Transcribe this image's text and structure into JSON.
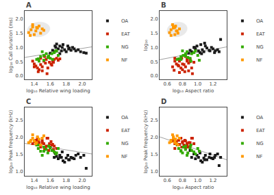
{
  "chart_data": [
    {
      "type": "scatter",
      "title": "A",
      "xlabel": "log₁₀ Relative wing loading",
      "ylabel": "log₁₀ Call duration (ms)",
      "xlim": [
        1.28,
        2.12
      ],
      "ylim": [
        -0.12,
        2.28
      ],
      "xticks": [
        1.4,
        1.6,
        1.8,
        {
          "value": 2.0,
          "label": "2.0"
        }
      ],
      "yticks": [
        {
          "value": 0.0,
          "label": "0.0"
        },
        0.5,
        {
          "value": 1.0,
          "label": "1.0"
        },
        1.5,
        {
          "value": 2.0,
          "label": "2.0"
        }
      ],
      "grid": false,
      "legend": "upper right",
      "ellipse": {
        "center": [
          1.455,
          1.63
        ],
        "width": 0.28,
        "height": 0.52,
        "angle": -5,
        "color": "#d8d8d8"
      },
      "series": [
        {
          "type": "line",
          "color": "#a0a0a0",
          "x": [
            1.28,
            2.12
          ],
          "values": [
            0.65,
            1.02
          ]
        },
        {
          "name": "OA",
          "color": "#1a1a1a",
          "marker": "square",
          "x": [
            1.6,
            1.63,
            1.65,
            1.67,
            1.7,
            1.72,
            1.74,
            1.76,
            1.78,
            1.8,
            1.82,
            1.84,
            1.86,
            1.88,
            1.9,
            1.92,
            1.95,
            1.98,
            2.02,
            2.05,
            1.68,
            1.75,
            1.83,
            1.72,
            1.66
          ],
          "values": [
            0.8,
            0.9,
            0.85,
            1.0,
            0.95,
            1.05,
            0.88,
            1.1,
            0.92,
            0.85,
            1.05,
            0.98,
            0.9,
            1.0,
            0.95,
            0.88,
            0.92,
            0.85,
            0.82,
            0.8,
            1.12,
            1.0,
            0.95,
            0.78,
            1.05
          ]
        },
        {
          "name": "EAT",
          "color": "#cc2200",
          "marker": "square",
          "x": [
            1.38,
            1.4,
            1.42,
            1.44,
            1.46,
            1.48,
            1.5,
            1.52,
            1.54,
            1.55,
            1.57,
            1.59,
            1.61,
            1.63,
            1.65,
            1.68,
            1.7,
            1.45,
            1.5,
            1.56,
            1.62,
            1.48,
            1.53,
            1.58,
            1.64,
            1.4,
            1.72
          ],
          "values": [
            0.52,
            0.42,
            0.35,
            0.28,
            0.22,
            0.4,
            0.32,
            0.52,
            0.45,
            0.58,
            0.28,
            0.48,
            0.42,
            0.52,
            0.58,
            0.62,
            0.55,
            0.15,
            0.18,
            0.08,
            0.38,
            0.62,
            0.68,
            0.65,
            0.48,
            0.32,
            0.6
          ]
        },
        {
          "name": "NG",
          "color": "#33aa00",
          "marker": "square",
          "x": [
            1.45,
            1.48,
            1.52,
            1.55,
            1.57,
            1.6,
            1.62,
            1.65,
            1.67,
            1.7,
            1.52,
            1.58,
            1.63,
            1.5,
            1.46,
            1.68,
            1.43
          ],
          "values": [
            0.6,
            0.68,
            0.72,
            0.78,
            0.65,
            0.62,
            0.78,
            0.82,
            0.88,
            0.72,
            0.55,
            0.7,
            0.58,
            0.85,
            0.52,
            0.88,
            0.58
          ]
        },
        {
          "name": "NF",
          "color": "#ff9900",
          "marker": "square",
          "x": [
            1.33,
            1.36,
            1.38,
            1.4,
            1.42,
            1.44,
            1.46,
            1.48,
            1.5,
            1.35,
            1.43,
            1.52,
            1.38
          ],
          "values": [
            1.52,
            1.62,
            1.72,
            1.45,
            1.58,
            1.68,
            1.75,
            1.5,
            1.65,
            1.42,
            1.7,
            1.6,
            1.8
          ]
        }
      ]
    },
    {
      "type": "scatter",
      "title": "B",
      "xlabel": "log₁₀ Aspect ratio",
      "ylabel": "log₁₀",
      "xlim": [
        0.5,
        1.38
      ],
      "ylim": [
        -0.12,
        2.28
      ],
      "xticks": [
        0.6,
        0.8,
        {
          "value": 1.0,
          "label": "1.0"
        },
        1.2
      ],
      "yticks": [
        {
          "value": 0.0,
          "label": "0.0"
        },
        0.5,
        {
          "value": 1.0,
          "label": "1.0"
        },
        1.5,
        {
          "value": 2.0,
          "label": "2.0"
        }
      ],
      "grid": false,
      "legend": "upper right",
      "ellipse": {
        "center": [
          0.73,
          1.63
        ],
        "width": 0.26,
        "height": 0.52,
        "angle": -5,
        "color": "#d8d8d8"
      },
      "series": [
        {
          "type": "line",
          "color": "#a0a0a0",
          "x": [
            0.5,
            1.38
          ],
          "values": [
            0.57,
            1.02
          ]
        },
        {
          "name": "OA",
          "color": "#1a1a1a",
          "marker": "square",
          "x": [
            0.88,
            0.9,
            0.92,
            0.95,
            0.97,
            0.99,
            1.01,
            1.04,
            1.06,
            1.08,
            1.1,
            1.12,
            1.15,
            1.18,
            1.2,
            1.23,
            1.26,
            1.28,
            1.3,
            1.03,
            1.09,
            1.16,
            1.22,
            0.96,
            1.05
          ],
          "values": [
            0.8,
            0.9,
            0.85,
            1.0,
            0.95,
            1.05,
            0.88,
            1.1,
            0.92,
            0.85,
            1.05,
            0.98,
            0.9,
            1.0,
            0.95,
            0.88,
            0.92,
            0.85,
            1.28,
            0.82,
            1.15,
            0.88,
            0.82,
            1.0,
            0.78
          ]
        },
        {
          "name": "EAT",
          "color": "#cc2200",
          "marker": "square",
          "x": [
            0.7,
            0.72,
            0.75,
            0.78,
            0.8,
            0.82,
            0.84,
            0.86,
            0.88,
            0.9,
            0.92,
            0.95,
            0.8,
            0.76,
            0.86,
            0.7,
            0.83,
            0.88,
            0.93,
            0.74,
            0.79,
            0.84,
            0.9,
            0.67,
            0.69,
            0.76,
            0.86
          ],
          "values": [
            0.52,
            0.42,
            0.35,
            0.28,
            0.22,
            0.4,
            0.32,
            0.52,
            0.45,
            0.58,
            0.28,
            0.48,
            0.42,
            0.52,
            0.58,
            0.62,
            0.15,
            0.18,
            0.08,
            0.38,
            0.62,
            0.68,
            0.5,
            0.32,
            0.2,
            0.12,
            0.58
          ]
        },
        {
          "name": "NG",
          "color": "#33aa00",
          "marker": "square",
          "x": [
            0.75,
            0.78,
            0.81,
            0.84,
            0.87,
            0.9,
            0.92,
            0.95,
            0.97,
            1.0,
            1.02,
            0.84,
            0.78,
            0.86,
            0.91,
            0.8,
            0.73
          ],
          "values": [
            0.6,
            0.68,
            0.72,
            0.78,
            0.65,
            0.62,
            0.78,
            0.82,
            0.88,
            0.72,
            0.55,
            0.7,
            0.58,
            0.85,
            0.52,
            0.88,
            0.58
          ]
        },
        {
          "name": "NF",
          "color": "#ff9900",
          "marker": "square",
          "x": [
            0.63,
            0.65,
            0.68,
            0.7,
            0.72,
            0.68,
            0.71,
            0.74,
            0.65,
            0.76,
            0.7,
            0.73,
            0.67
          ],
          "values": [
            1.52,
            1.62,
            1.72,
            1.45,
            1.58,
            1.68,
            1.75,
            1.5,
            1.42,
            1.65,
            1.7,
            1.58,
            1.8
          ]
        }
      ]
    },
    {
      "type": "scatter",
      "title": "C",
      "xlabel": "log₁₀ Relative wing loading",
      "ylabel": "log₁₀ Peak frequency (kHz)",
      "xlim": [
        1.28,
        2.12
      ],
      "ylim": [
        0.88,
        2.88
      ],
      "xticks": [
        1.4,
        1.6,
        1.8,
        {
          "value": 2.0,
          "label": "2.0"
        }
      ],
      "yticks": [
        {
          "value": 1.0,
          "label": "1.0"
        },
        1.5,
        {
          "value": 2.0,
          "label": "2.0"
        },
        2.5
      ],
      "grid": false,
      "legend": "upper right",
      "series": [
        {
          "type": "line",
          "color": "#a0a0a0",
          "x": [
            1.28,
            2.12
          ],
          "values": [
            1.83,
            1.52
          ]
        },
        {
          "name": "OA",
          "color": "#1a1a1a",
          "marker": "square",
          "x": [
            1.6,
            1.63,
            1.65,
            1.67,
            1.7,
            1.72,
            1.74,
            1.76,
            1.78,
            1.8,
            1.82,
            1.84,
            1.86,
            1.88,
            1.9,
            1.92,
            1.95,
            1.98,
            2.02,
            2.05,
            1.68,
            1.75,
            1.83,
            1.72,
            1.66
          ],
          "values": [
            1.72,
            1.62,
            1.42,
            1.52,
            1.38,
            1.48,
            1.42,
            1.32,
            1.28,
            1.4,
            1.48,
            1.35,
            1.42,
            1.4,
            1.38,
            1.48,
            1.52,
            1.42,
            1.48,
            1.1,
            1.45,
            1.58,
            1.35,
            1.42,
            1.55
          ]
        },
        {
          "name": "EAT",
          "color": "#cc2200",
          "marker": "square",
          "x": [
            1.38,
            1.4,
            1.42,
            1.44,
            1.46,
            1.48,
            1.5,
            1.52,
            1.54,
            1.55,
            1.57,
            1.59,
            1.61,
            1.63,
            1.65,
            1.68,
            1.7,
            1.45,
            1.5,
            1.56,
            1.62,
            1.48,
            1.53,
            1.58,
            1.64
          ],
          "values": [
            1.82,
            1.88,
            1.92,
            1.98,
            1.85,
            1.78,
            1.9,
            1.82,
            1.72,
            1.75,
            1.98,
            1.82,
            1.88,
            1.8,
            1.75,
            1.68,
            1.68,
            1.92,
            1.85,
            1.98,
            1.78,
            1.72,
            1.68,
            1.62,
            1.65
          ]
        },
        {
          "name": "NG",
          "color": "#33aa00",
          "marker": "square",
          "x": [
            1.45,
            1.48,
            1.52,
            1.55,
            1.57,
            1.6,
            1.62,
            1.65,
            1.67,
            1.7,
            1.52,
            1.58,
            1.63,
            1.5,
            1.46,
            1.68,
            1.43
          ],
          "values": [
            1.68,
            1.6,
            1.72,
            1.65,
            1.55,
            1.7,
            1.62,
            1.58,
            1.52,
            1.68,
            1.6,
            1.75,
            1.62,
            1.48,
            1.78,
            1.55,
            1.78
          ]
        },
        {
          "name": "NF",
          "color": "#ff9900",
          "marker": "square",
          "x": [
            1.33,
            1.36,
            1.38,
            1.4,
            1.42,
            1.44,
            1.46,
            1.48,
            1.5,
            1.35,
            1.43,
            1.52,
            1.38
          ],
          "values": [
            1.85,
            1.92,
            1.98,
            1.9,
            1.82,
            2.02,
            1.95,
            1.78,
            1.98,
            1.88,
            1.85,
            2.05,
            2.08
          ]
        }
      ]
    },
    {
      "type": "scatter",
      "title": "D",
      "xlabel": "log₁₀ Aspect ratio",
      "ylabel": "log₁₀ Peak frequency (kHz)",
      "xlim": [
        0.5,
        1.38
      ],
      "ylim": [
        0.88,
        2.88
      ],
      "xticks": [
        0.6,
        0.8,
        {
          "value": 1.0,
          "label": "1.0"
        },
        1.2
      ],
      "yticks": [
        {
          "value": 1.0,
          "label": "1.0"
        },
        1.5,
        {
          "value": 2.0,
          "label": "2.0"
        },
        2.5
      ],
      "grid": false,
      "legend": "upper right",
      "series": [
        {
          "type": "line",
          "color": "#a0a0a0",
          "x": [
            0.5,
            1.38
          ],
          "values": [
            2.02,
            1.35
          ]
        },
        {
          "name": "OA",
          "color": "#1a1a1a",
          "marker": "square",
          "x": [
            0.88,
            0.9,
            0.92,
            0.95,
            0.97,
            0.99,
            1.01,
            1.04,
            1.06,
            1.08,
            1.1,
            1.12,
            1.15,
            1.18,
            1.2,
            1.23,
            1.26,
            1.28,
            1.3,
            1.03,
            1.09,
            1.16,
            1.22
          ],
          "values": [
            1.72,
            1.62,
            1.42,
            1.52,
            1.38,
            1.48,
            1.42,
            1.32,
            1.28,
            1.4,
            1.48,
            1.35,
            1.42,
            1.4,
            1.38,
            1.48,
            1.52,
            1.18,
            1.42,
            1.55,
            1.35,
            1.52,
            1.42
          ]
        },
        {
          "name": "EAT",
          "color": "#cc2200",
          "marker": "square",
          "x": [
            0.7,
            0.72,
            0.75,
            0.78,
            0.8,
            0.82,
            0.84,
            0.86,
            0.88,
            0.9,
            0.92,
            0.95,
            0.8,
            0.76,
            0.86,
            0.7,
            0.83,
            0.88,
            0.93,
            0.74,
            0.79,
            0.84,
            0.9,
            0.67,
            0.69
          ],
          "values": [
            1.82,
            1.88,
            1.92,
            1.98,
            1.85,
            1.78,
            1.9,
            1.82,
            1.72,
            1.75,
            1.98,
            1.82,
            1.88,
            1.8,
            1.75,
            1.68,
            1.92,
            1.85,
            1.98,
            1.78,
            1.72,
            1.68,
            1.85,
            1.9,
            1.95
          ]
        },
        {
          "name": "NG",
          "color": "#33aa00",
          "marker": "square",
          "x": [
            0.75,
            0.78,
            0.81,
            0.84,
            0.87,
            0.9,
            0.92,
            0.95,
            0.97,
            1.0,
            1.02,
            0.84,
            0.78,
            0.86,
            0.91,
            0.8,
            0.73
          ],
          "values": [
            1.68,
            1.6,
            1.72,
            1.65,
            1.55,
            1.7,
            1.62,
            1.58,
            1.52,
            1.68,
            1.6,
            1.75,
            1.62,
            1.48,
            1.78,
            1.55,
            1.78
          ]
        },
        {
          "name": "NF",
          "color": "#ff9900",
          "marker": "square",
          "x": [
            0.63,
            0.65,
            0.68,
            0.7,
            0.72,
            0.68,
            0.71,
            0.74,
            0.65,
            0.76,
            0.7,
            0.73,
            0.67
          ],
          "values": [
            1.85,
            1.92,
            1.98,
            1.9,
            1.82,
            2.02,
            1.95,
            1.78,
            1.88,
            1.98,
            1.85,
            2.05,
            2.08
          ]
        }
      ]
    }
  ]
}
